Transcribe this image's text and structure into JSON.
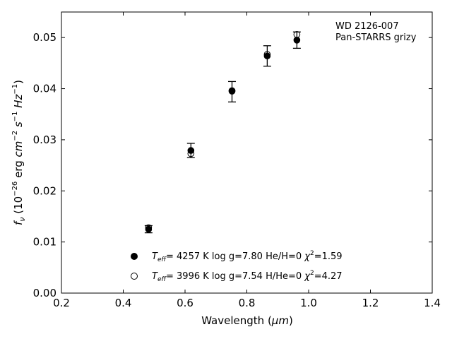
{
  "chart_data": {
    "type": "scatter",
    "title": "",
    "xlabel": "Wavelength (",
    "xlabel_unit": "μm",
    "xlabel_close": ")",
    "ylabel": {
      "f": "f",
      "sub": "ν",
      "open": " (10",
      "exp": "−26",
      "erg": " erg ",
      "cm": "cm",
      "cm_exp": "−2",
      "s": " s",
      "s_exp": "−1",
      "hz": " Hz",
      "hz_exp": "−1",
      "close": ")"
    },
    "xlim": [
      0.2,
      1.4
    ],
    "ylim": [
      0.0,
      0.055
    ],
    "x_ticks": [
      0.2,
      0.4,
      0.6,
      0.8,
      1.0,
      1.2,
      1.4
    ],
    "x_tick_labels": [
      "0.2",
      "0.4",
      "0.6",
      "0.8",
      "1.0",
      "1.2",
      "1.4"
    ],
    "y_ticks": [
      0.0,
      0.01,
      0.02,
      0.03,
      0.04,
      0.05
    ],
    "y_tick_labels": [
      "0.00",
      "0.01",
      "0.02",
      "0.03",
      "0.04",
      "0.05"
    ],
    "grid": false,
    "annotation": [
      "WD 2126-007",
      "Pan-STARRS grizy"
    ],
    "annotation_position": "top-right",
    "observed": {
      "x": [
        0.482,
        0.619,
        0.752,
        0.866,
        0.962
      ],
      "y": [
        0.0125,
        0.0279,
        0.0394,
        0.0464,
        0.0495
      ],
      "yerr": [
        0.0007,
        0.0014,
        0.002,
        0.002,
        0.0016
      ]
    },
    "series": [
      {
        "name": {
          "t": "T",
          "eff": "eff",
          "rest": "=  4257 K  log g=7.80  He/H=0  ",
          "chi": "χ",
          "chi_exp": "2",
          "chi_val": "=1.59"
        },
        "marker": "filled-circle",
        "x": [
          0.482,
          0.619,
          0.752,
          0.866,
          0.962
        ],
        "y": [
          0.0125,
          0.0279,
          0.0395,
          0.0464,
          0.0495
        ]
      },
      {
        "name": {
          "t": "T",
          "eff": "eff",
          "rest": "=  3996 K  log g=7.54  H/He=0  ",
          "chi": "χ",
          "chi_exp": "2",
          "chi_val": "=4.27"
        },
        "marker": "open-circle",
        "x": [
          0.482,
          0.619,
          0.752,
          0.866,
          0.962
        ],
        "y": [
          0.0128,
          0.0273,
          0.0396,
          0.0467,
          0.0506
        ]
      }
    ],
    "legend_position": "lower-center",
    "colors": {
      "marker": "#000000",
      "axis": "#000000",
      "background": "#ffffff"
    }
  }
}
